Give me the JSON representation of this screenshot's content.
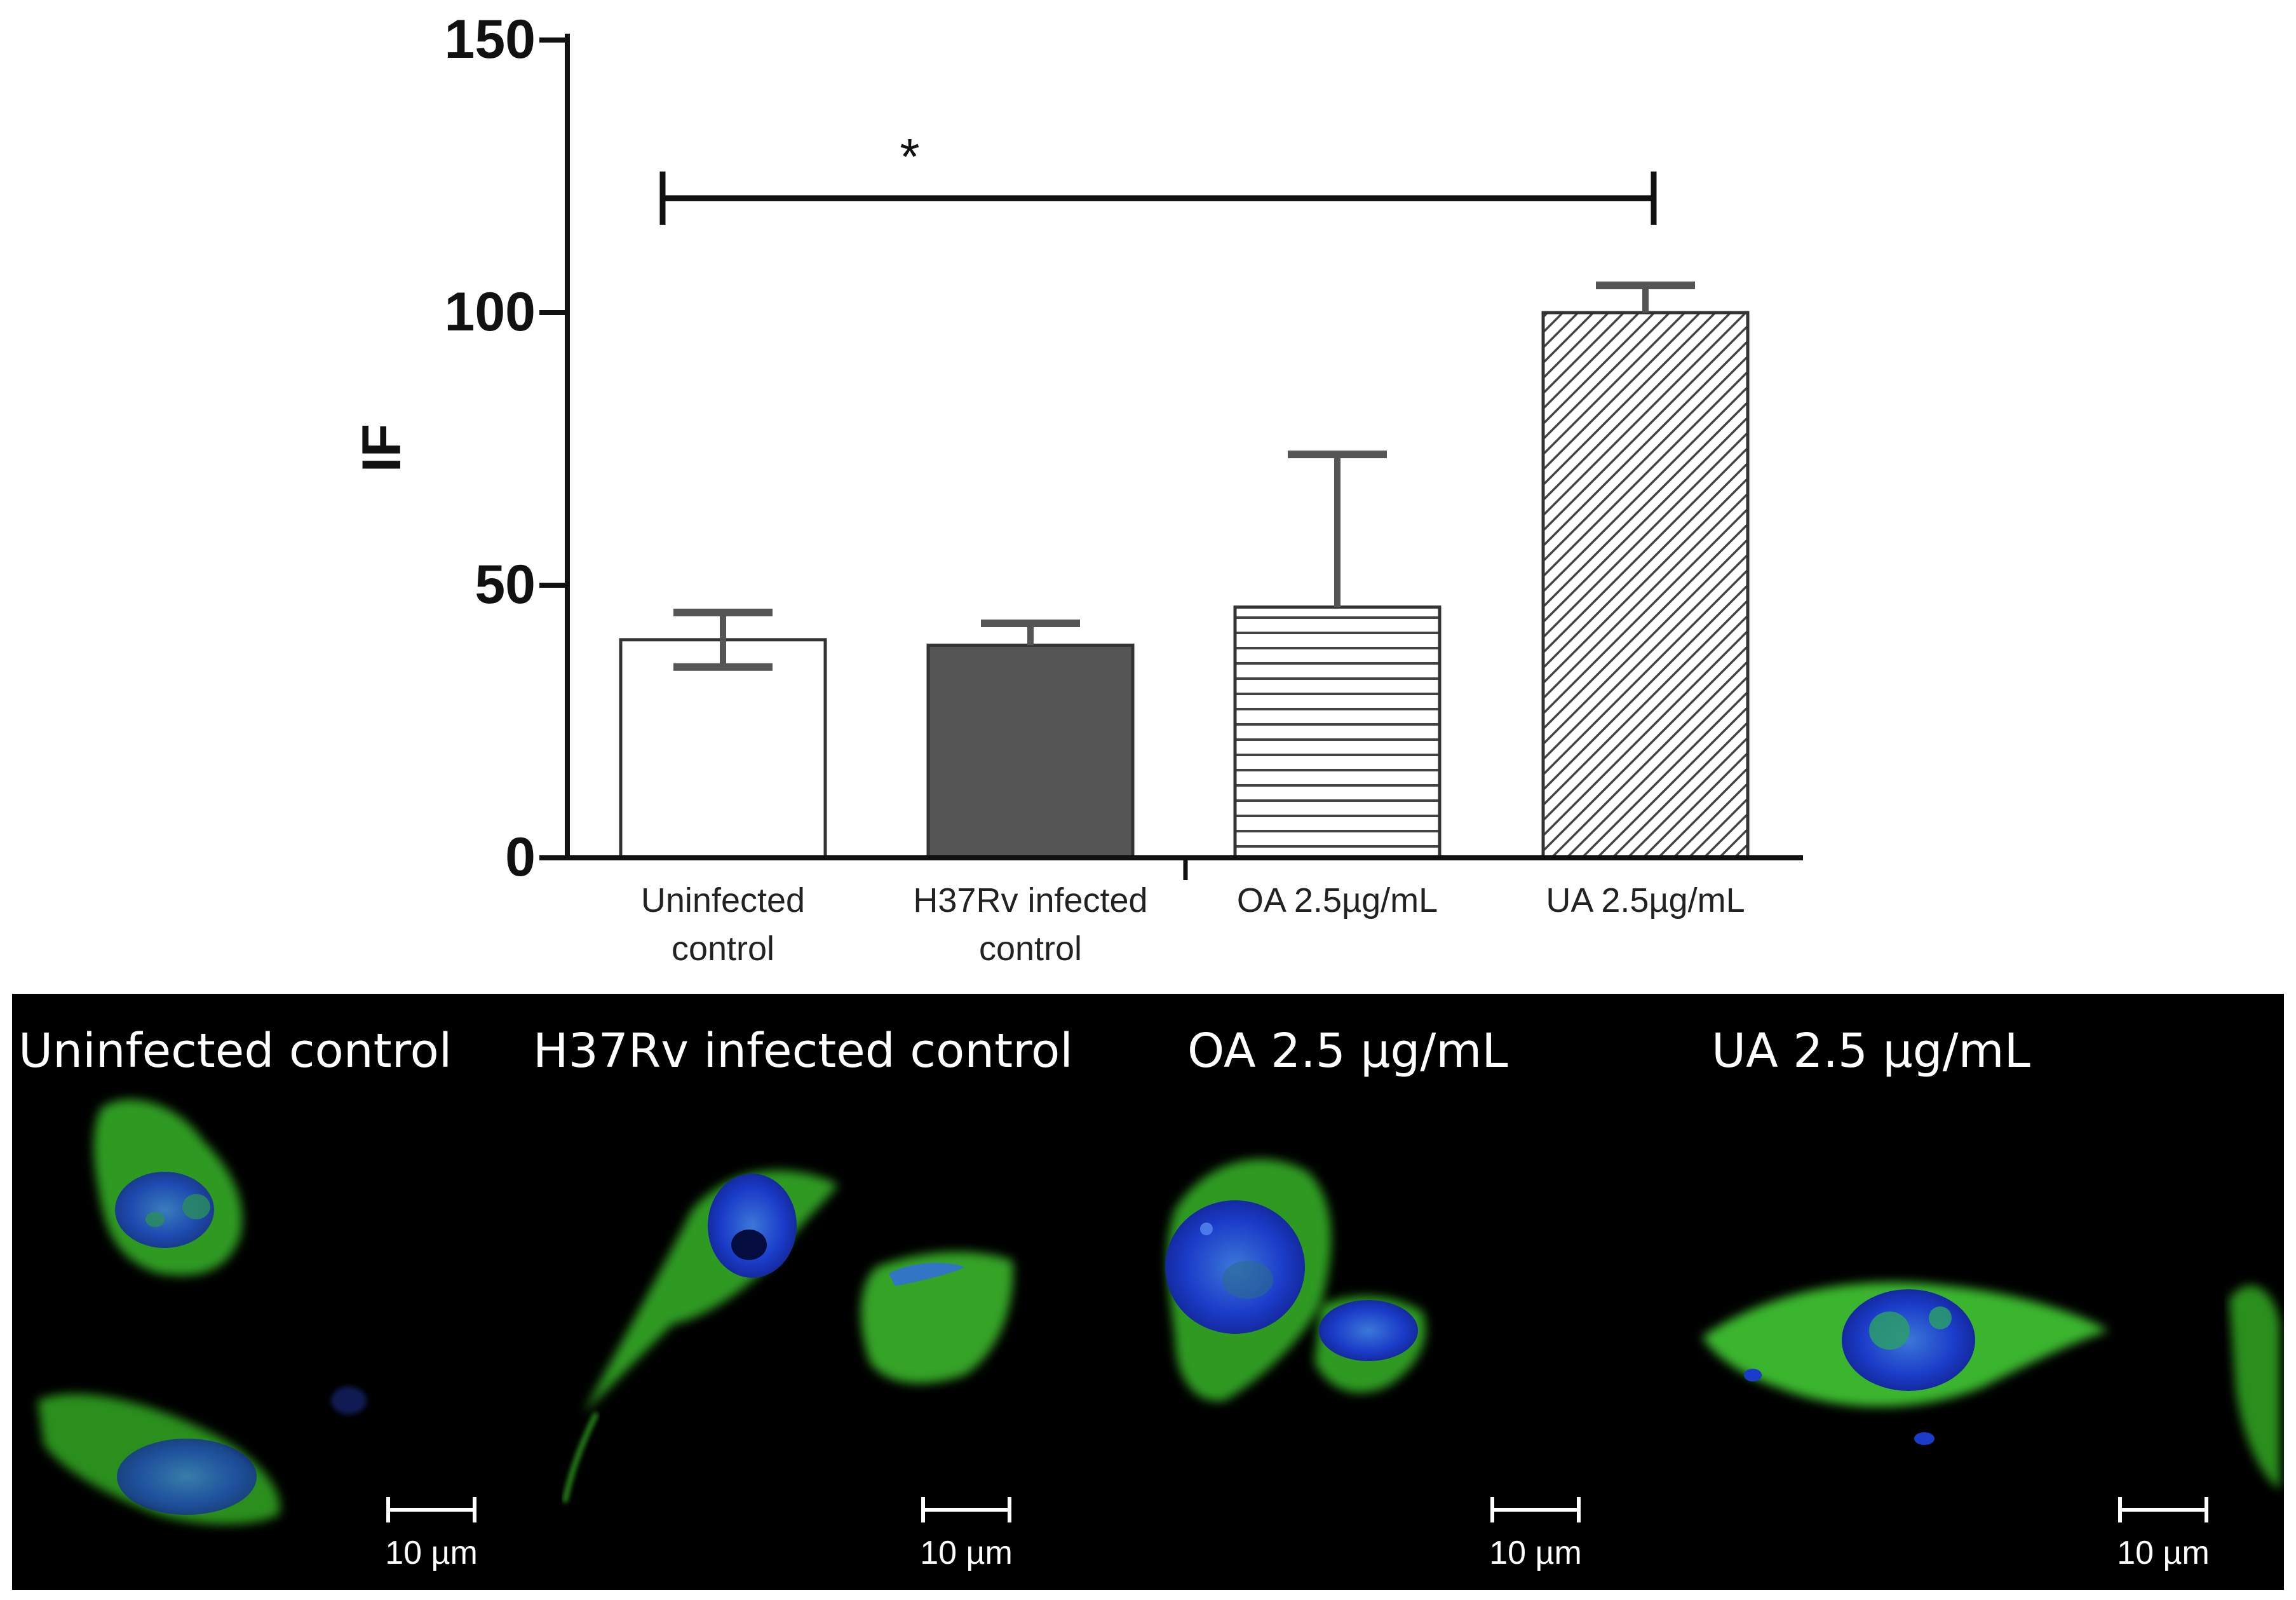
{
  "chart_data": {
    "type": "bar",
    "ylabel": "IF",
    "ylim": [
      0,
      150
    ],
    "yticks": [
      0,
      50,
      100,
      150
    ],
    "categories": [
      [
        "Uninfected",
        "control"
      ],
      [
        "H37Rv infected",
        "control"
      ],
      [
        "OA  2.5µg/mL"
      ],
      [
        "UA 2.5µg/mL"
      ]
    ],
    "values": [
      40,
      39,
      46,
      100
    ],
    "errors": [
      5,
      4,
      28,
      5
    ],
    "patterns": [
      "white",
      "darkgray",
      "horizontal-lines",
      "diagonal-lines"
    ],
    "significance": {
      "from": 0,
      "to": 3,
      "y": 121,
      "label": "*"
    }
  },
  "micrographs": {
    "panels": [
      {
        "label": "Uninfected control",
        "scale": "10 µm"
      },
      {
        "label": "H37Rv infected  control",
        "scale": "10 µm"
      },
      {
        "label": "OA  2.5 µg/mL",
        "scale": "10 µm"
      },
      {
        "label": "UA  2.5 µg/mL",
        "scale": "10 µm"
      }
    ],
    "colors": {
      "cytoplasm": "#3fae2a",
      "nucleus": "#1530c8",
      "background": "#000000"
    }
  }
}
